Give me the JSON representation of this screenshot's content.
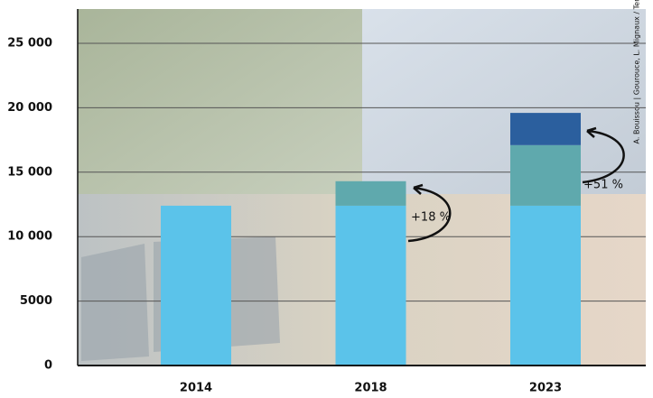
{
  "chart_data": {
    "type": "stacked_bar",
    "categories": [
      "2014",
      "2018",
      "2023"
    ],
    "series": [
      {
        "color": "#5bc3ea",
        "values": [
          12400,
          12400,
          12400
        ]
      },
      {
        "color": "#5fa9ad",
        "values": [
          null,
          1900,
          4700
        ]
      },
      {
        "color": "#2b5f9e",
        "values": [
          null,
          null,
          2500
        ]
      }
    ],
    "ylim": [
      0,
      27500
    ],
    "yticks": [
      0,
      5000,
      {
        "value": 10000,
        "label": "10 000"
      },
      {
        "value": 15000,
        "label": "15 000"
      },
      {
        "value": 20000,
        "label": "20 000"
      },
      {
        "value": 25000,
        "label": "25 000"
      }
    ],
    "grid": true,
    "annotations": [
      "+18 %",
      "+51 %"
    ],
    "credit": "A. Bouissou | Gourouce, L. Mignaux / Terra"
  }
}
